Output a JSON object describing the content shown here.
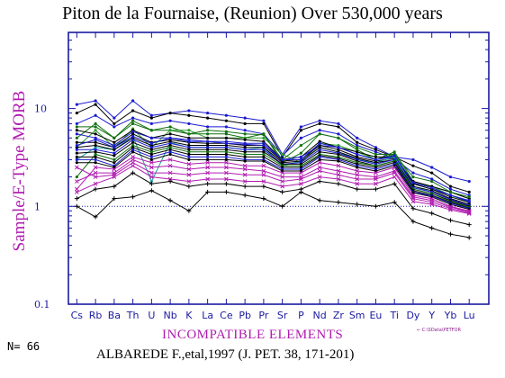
{
  "colors": {
    "axis": "#1a1aa0",
    "title": "#000000",
    "label_magenta": "#b01cb0",
    "count_cyan": "#20a0a0"
  },
  "title": "Piton de la Fournaise, (Reunion) Over 530,000 years",
  "ylabel": "Sample/E-Type MORB",
  "xlabel": "INCOMPATIBLE ELEMENTS",
  "n_label": "N=",
  "n_value": "66",
  "reference": "ALBAREDE F.,etal,1997 (J. PET. 38, 171-201)",
  "file_note": "← C:\\SData\\PETFOR",
  "chart_data": {
    "type": "line",
    "log_y": true,
    "ylim": [
      0.1,
      60
    ],
    "y_ticks": [
      0.1,
      1,
      10
    ],
    "y_tick_labels": [
      "0.1",
      "1",
      "10"
    ],
    "reference_line": 1,
    "categories": [
      "Cs",
      "Rb",
      "Ba",
      "Th",
      "U",
      "Nb",
      "K",
      "La",
      "Ce",
      "Pb",
      "Pr",
      "Sr",
      "P",
      "Nd",
      "Zr",
      "Sm",
      "Eu",
      "Ti",
      "Dy",
      "Y",
      "Yb",
      "Lu"
    ],
    "series": [
      {
        "color": "#1a1ad0",
        "marker": "dot",
        "values": [
          11,
          12,
          8,
          12,
          8.5,
          9,
          9.5,
          9,
          8.5,
          8,
          7.5,
          3.4,
          6.5,
          7.5,
          7,
          5,
          4,
          3.2,
          3,
          2.5,
          2,
          1.8
        ]
      },
      {
        "color": "#000000",
        "marker": "dot",
        "values": [
          9,
          11,
          7,
          9.5,
          8,
          9,
          8.5,
          8,
          7.5,
          7,
          7,
          3.2,
          6,
          7,
          6.5,
          4.5,
          3.8,
          3.2,
          2.6,
          2.2,
          1.6,
          1.4
        ]
      },
      {
        "color": "#1a1ad0",
        "marker": "dot",
        "values": [
          7,
          8.5,
          6.5,
          8,
          7,
          7.5,
          7,
          6.5,
          6.5,
          6,
          5.5,
          3.3,
          5,
          6,
          5.5,
          4.2,
          3.6,
          3.1,
          2.2,
          1.9,
          1.5,
          1.3
        ]
      },
      {
        "color": "#107010",
        "marker": "dot",
        "values": [
          5,
          7,
          5,
          7,
          6,
          6,
          5.5,
          5.5,
          5.5,
          5,
          5.5,
          2.8,
          3.5,
          5.5,
          5,
          3.8,
          3,
          3.6,
          1.8,
          1.6,
          1.4,
          1.2
        ]
      },
      {
        "color": "#2aa02a",
        "marker": "dot",
        "values": [
          4,
          6,
          4,
          6.2,
          4,
          6,
          6,
          5,
          5,
          5,
          5,
          3.4,
          2.8,
          4.4,
          4.2,
          3.6,
          3,
          3.4,
          1.7,
          1.6,
          1.3,
          1.1
        ]
      },
      {
        "color": "#000000",
        "marker": "dot",
        "values": [
          6,
          5.5,
          4.5,
          6,
          5,
          5.5,
          5,
          5,
          5,
          4.8,
          4.6,
          3,
          3.2,
          4.6,
          4,
          3.6,
          3.2,
          3.2,
          1.8,
          1.6,
          1.4,
          1.2
        ]
      },
      {
        "color": "#1a1ad0",
        "marker": "dot",
        "values": [
          5.5,
          5,
          4.2,
          5.8,
          5,
          5,
          4.8,
          4.6,
          4.6,
          4.4,
          4.4,
          3,
          3.2,
          4.2,
          4,
          3.4,
          3,
          3.2,
          1.7,
          1.5,
          1.3,
          1.15
        ]
      },
      {
        "color": "#000000",
        "marker": "dot",
        "values": [
          4.5,
          4.5,
          4,
          5.5,
          4.5,
          4.8,
          4.5,
          4.4,
          4.4,
          4.2,
          4.2,
          2.9,
          3,
          4.2,
          3.8,
          3.2,
          2.9,
          3.1,
          1.7,
          1.5,
          1.25,
          1.1
        ]
      },
      {
        "color": "#20a0a0",
        "marker": "dot",
        "values": [
          3,
          4,
          3.8,
          5.2,
          1.8,
          4.5,
          4,
          4,
          4,
          3.8,
          4,
          2.6,
          2.9,
          4,
          3.6,
          3,
          2.8,
          3.2,
          1.6,
          1.4,
          1.2,
          1.05
        ]
      },
      {
        "color": "#000000",
        "marker": "dot",
        "values": [
          4,
          4.2,
          3.8,
          5,
          4.2,
          4.6,
          4.2,
          4.2,
          4.2,
          4,
          4,
          2.8,
          2.9,
          4,
          3.6,
          3.1,
          2.8,
          3,
          1.6,
          1.45,
          1.2,
          1.05
        ]
      },
      {
        "color": "#1a1ad0",
        "marker": "dot",
        "values": [
          3.8,
          3.8,
          3.5,
          4.8,
          4,
          4.4,
          4,
          4,
          4,
          3.8,
          3.8,
          2.7,
          2.8,
          3.8,
          3.5,
          3,
          2.7,
          3,
          1.55,
          1.4,
          1.18,
          1.02
        ]
      },
      {
        "color": "#000000",
        "marker": "dot",
        "values": [
          3.5,
          3.6,
          3.3,
          4.5,
          3.8,
          4.2,
          3.8,
          3.8,
          3.8,
          3.6,
          3.6,
          2.7,
          2.7,
          3.6,
          3.4,
          2.9,
          2.6,
          2.9,
          1.5,
          1.35,
          1.15,
          1
        ]
      },
      {
        "color": "#107010",
        "marker": "dot",
        "values": [
          2,
          3.4,
          3,
          4.2,
          3.6,
          4,
          3.6,
          3.6,
          3.6,
          3.4,
          3.4,
          2.6,
          2.6,
          3.4,
          3.2,
          2.8,
          2.6,
          2.9,
          1.5,
          1.35,
          1.12,
          0.98
        ]
      },
      {
        "color": "#000000",
        "marker": "dot",
        "values": [
          3.2,
          3.2,
          2.8,
          4,
          3.4,
          3.8,
          3.4,
          3.4,
          3.4,
          3.2,
          3.2,
          2.5,
          2.5,
          3.3,
          3.1,
          2.7,
          2.5,
          2.8,
          1.45,
          1.3,
          1.1,
          0.96
        ]
      },
      {
        "color": "#1a1ad0",
        "marker": "dot",
        "values": [
          3,
          3,
          2.6,
          3.8,
          3.2,
          3.6,
          3.2,
          3.2,
          3.2,
          3,
          3,
          2.4,
          2.4,
          3.2,
          3,
          2.6,
          2.4,
          2.7,
          1.4,
          1.28,
          1.08,
          0.95
        ]
      },
      {
        "color": "#000000",
        "marker": "dot",
        "values": [
          2.8,
          2.8,
          2.5,
          3.6,
          3,
          3.4,
          3,
          3,
          3,
          2.9,
          2.9,
          2.3,
          2.3,
          3,
          2.9,
          2.5,
          2.3,
          2.6,
          1.38,
          1.25,
          1.05,
          0.93
        ]
      },
      {
        "color": "#b01cb0",
        "marker": "x",
        "values": [
          1.5,
          2.5,
          2.4,
          3.2,
          2.8,
          3,
          2.7,
          2.8,
          2.8,
          2.6,
          2.6,
          2.2,
          2.2,
          2.8,
          2.6,
          2.3,
          2.2,
          2.5,
          1.3,
          1.2,
          1,
          0.9
        ]
      },
      {
        "color": "#b01cb0",
        "marker": "x",
        "values": [
          1.8,
          2.2,
          2.2,
          3,
          2.5,
          2.6,
          2.4,
          2.5,
          2.5,
          2.4,
          2.3,
          2,
          2,
          2.5,
          2.3,
          2.1,
          2,
          2.3,
          1.25,
          1.15,
          0.98,
          0.88
        ]
      },
      {
        "color": "#b01cb0",
        "marker": "x",
        "values": [
          2.5,
          2,
          2.1,
          2.8,
          2.2,
          2.2,
          2.1,
          2.2,
          2.2,
          2.1,
          2.1,
          1.8,
          1.9,
          2.3,
          2.1,
          1.9,
          1.9,
          2.2,
          1.2,
          1.1,
          0.95,
          0.86
        ]
      },
      {
        "color": "#b01cb0",
        "marker": "x",
        "values": [
          1.4,
          1.7,
          2,
          2.6,
          2,
          1.9,
          1.8,
          1.9,
          1.9,
          1.8,
          1.8,
          1.6,
          1.7,
          2,
          1.9,
          1.7,
          1.7,
          2,
          1.12,
          1.05,
          0.92,
          0.84
        ]
      },
      {
        "color": "#000000",
        "marker": "plus",
        "values": [
          1,
          0.78,
          1.2,
          1.25,
          1.45,
          1.15,
          0.9,
          1.4,
          1.4,
          1.3,
          1.2,
          1,
          1.4,
          1.15,
          1.1,
          1.05,
          1,
          1.1,
          0.7,
          0.6,
          0.52,
          0.48
        ]
      },
      {
        "color": "#000000",
        "marker": "plus",
        "values": [
          1.2,
          1.5,
          1.6,
          2.2,
          1.7,
          1.8,
          1.6,
          1.7,
          1.7,
          1.6,
          1.6,
          1.4,
          1.5,
          1.8,
          1.7,
          1.5,
          1.5,
          1.7,
          0.95,
          0.85,
          0.72,
          0.65
        ]
      },
      {
        "color": "#107010",
        "marker": "dot",
        "values": [
          6.5,
          6.5,
          5,
          7.5,
          6,
          6.5,
          5.5,
          6,
          5.8,
          5.5,
          5.4,
          3,
          4.2,
          5.5,
          5,
          4,
          3.4,
          3.4,
          2,
          1.8,
          1.4,
          1.25
        ]
      },
      {
        "color": "#1a1ad0",
        "marker": "dot",
        "values": [
          4.2,
          4.8,
          4,
          5.2,
          4.4,
          5,
          4.6,
          4.6,
          4.4,
          4.3,
          4.2,
          3,
          3,
          4.4,
          4,
          3.4,
          3,
          3.3,
          1.75,
          1.55,
          1.3,
          1.12
        ]
      }
    ]
  }
}
